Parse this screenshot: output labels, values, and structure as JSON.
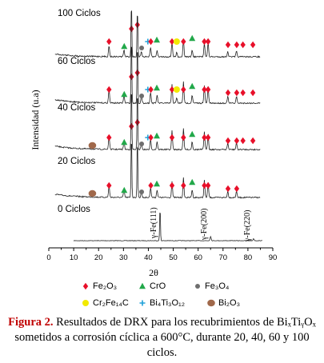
{
  "chart_data": {
    "type": "line",
    "xlabel": "2θ",
    "ylabel": "Intensidad (u.a)",
    "xlim": [
      0,
      90
    ],
    "xticks": [
      0,
      5,
      10,
      15,
      20,
      25,
      30,
      35,
      40,
      45,
      50,
      55,
      60,
      65,
      70,
      75,
      80,
      85,
      90
    ],
    "grid": false,
    "series": [
      {
        "name": "0 Ciclos",
        "peaks": [
          {
            "x": 44.7,
            "h": 1.0
          },
          {
            "x": 65.0,
            "h": 0.13
          },
          {
            "x": 82.3,
            "h": 0.06
          }
        ],
        "markers": []
      },
      {
        "name": "20 Ciclos",
        "peaks": [
          {
            "x": 24.2,
            "h": 0.18
          },
          {
            "x": 30.2,
            "h": 0.12
          },
          {
            "x": 33.2,
            "h": 1.0
          },
          {
            "x": 35.6,
            "h": 0.93
          },
          {
            "x": 37.2,
            "h": 0.1
          },
          {
            "x": 40.9,
            "h": 0.16
          },
          {
            "x": 43.5,
            "h": 0.12
          },
          {
            "x": 49.5,
            "h": 0.25
          },
          {
            "x": 54.1,
            "h": 0.3
          },
          {
            "x": 57.6,
            "h": 0.12
          },
          {
            "x": 62.5,
            "h": 0.26
          },
          {
            "x": 64.0,
            "h": 0.24
          },
          {
            "x": 71.9,
            "h": 0.1
          },
          {
            "x": 75.4,
            "h": 0.1
          }
        ],
        "markers": [
          {
            "x": 24.2,
            "type": "Fe2O3"
          },
          {
            "x": 17.5,
            "type": "Bi2O3"
          },
          {
            "x": 30.3,
            "type": "CrO"
          },
          {
            "x": 33.2,
            "type": "Fe2O3"
          },
          {
            "x": 35.6,
            "type": "Fe2O3"
          },
          {
            "x": 37.3,
            "type": "Fe3O4"
          },
          {
            "x": 41.0,
            "type": "Fe2O3"
          },
          {
            "x": 43.4,
            "type": "CrO"
          },
          {
            "x": 49.5,
            "type": "Fe2O3"
          },
          {
            "x": 54.1,
            "type": "Fe2O3"
          },
          {
            "x": 57.6,
            "type": "CrO"
          },
          {
            "x": 62.5,
            "type": "Fe2O3"
          },
          {
            "x": 64.0,
            "type": "Fe2O3"
          },
          {
            "x": 72.0,
            "type": "Fe2O3"
          },
          {
            "x": 75.5,
            "type": "Fe2O3"
          }
        ]
      },
      {
        "name": "40 Ciclos",
        "peaks": [
          {
            "x": 24.2,
            "h": 0.2
          },
          {
            "x": 30.2,
            "h": 0.12
          },
          {
            "x": 33.2,
            "h": 1.0
          },
          {
            "x": 35.6,
            "h": 0.92
          },
          {
            "x": 37.2,
            "h": 0.1
          },
          {
            "x": 40.9,
            "h": 0.15
          },
          {
            "x": 43.5,
            "h": 0.12
          },
          {
            "x": 49.5,
            "h": 0.28
          },
          {
            "x": 54.1,
            "h": 0.32
          },
          {
            "x": 57.6,
            "h": 0.12
          },
          {
            "x": 62.5,
            "h": 0.27
          },
          {
            "x": 64.0,
            "h": 0.25
          },
          {
            "x": 71.9,
            "h": 0.1
          },
          {
            "x": 75.4,
            "h": 0.1
          }
        ],
        "markers": [
          {
            "x": 17.5,
            "type": "Bi2O3"
          },
          {
            "x": 24.2,
            "type": "Fe2O3"
          },
          {
            "x": 30.3,
            "type": "CrO"
          },
          {
            "x": 33.2,
            "type": "Fe2O3"
          },
          {
            "x": 35.6,
            "type": "Fe2O3"
          },
          {
            "x": 37.3,
            "type": "Fe3O4"
          },
          {
            "x": 39.8,
            "type": "Bi4Ti3O12"
          },
          {
            "x": 41.0,
            "type": "Fe2O3"
          },
          {
            "x": 43.4,
            "type": "CrO"
          },
          {
            "x": 49.5,
            "type": "Fe2O3"
          },
          {
            "x": 54.1,
            "type": "Fe2O3"
          },
          {
            "x": 57.6,
            "type": "CrO"
          },
          {
            "x": 62.5,
            "type": "Fe2O3"
          },
          {
            "x": 64.0,
            "type": "Fe2O3"
          },
          {
            "x": 72.0,
            "type": "Fe2O3"
          },
          {
            "x": 75.5,
            "type": "Fe2O3"
          },
          {
            "x": 78.0,
            "type": "Fe2O3"
          },
          {
            "x": 82.0,
            "type": "Fe2O3"
          }
        ]
      },
      {
        "name": "60 Ciclos",
        "peaks": [
          {
            "x": 24.2,
            "h": 0.2
          },
          {
            "x": 30.2,
            "h": 0.12
          },
          {
            "x": 33.2,
            "h": 1.0
          },
          {
            "x": 35.6,
            "h": 0.9
          },
          {
            "x": 37.2,
            "h": 0.1
          },
          {
            "x": 40.9,
            "h": 0.16
          },
          {
            "x": 43.5,
            "h": 0.12
          },
          {
            "x": 49.5,
            "h": 0.28
          },
          {
            "x": 51.4,
            "h": 0.08
          },
          {
            "x": 54.1,
            "h": 0.32
          },
          {
            "x": 57.6,
            "h": 0.12
          },
          {
            "x": 62.5,
            "h": 0.26
          },
          {
            "x": 64.0,
            "h": 0.25
          },
          {
            "x": 71.9,
            "h": 0.1
          },
          {
            "x": 75.4,
            "h": 0.1
          }
        ],
        "markers": [
          {
            "x": 24.2,
            "type": "Fe2O3"
          },
          {
            "x": 30.3,
            "type": "CrO"
          },
          {
            "x": 33.2,
            "type": "Fe2O3"
          },
          {
            "x": 35.6,
            "type": "Fe2O3"
          },
          {
            "x": 37.3,
            "type": "Fe3O4"
          },
          {
            "x": 39.8,
            "type": "Bi4Ti3O12"
          },
          {
            "x": 41.0,
            "type": "Fe2O3"
          },
          {
            "x": 43.4,
            "type": "CrO"
          },
          {
            "x": 49.5,
            "type": "Fe2O3"
          },
          {
            "x": 51.4,
            "type": "Cr2Fe14C"
          },
          {
            "x": 54.1,
            "type": "Fe2O3"
          },
          {
            "x": 57.6,
            "type": "CrO"
          },
          {
            "x": 62.5,
            "type": "Fe2O3"
          },
          {
            "x": 64.0,
            "type": "Fe2O3"
          },
          {
            "x": 72.0,
            "type": "Fe2O3"
          },
          {
            "x": 75.5,
            "type": "Fe2O3"
          },
          {
            "x": 78.0,
            "type": "Fe2O3"
          },
          {
            "x": 82.0,
            "type": "Fe2O3"
          }
        ]
      },
      {
        "name": "100 Ciclos",
        "peaks": [
          {
            "x": 24.2,
            "h": 0.2
          },
          {
            "x": 30.2,
            "h": 0.12
          },
          {
            "x": 33.2,
            "h": 1.0
          },
          {
            "x": 35.6,
            "h": 0.88
          },
          {
            "x": 37.2,
            "h": 0.1
          },
          {
            "x": 40.9,
            "h": 0.16
          },
          {
            "x": 43.5,
            "h": 0.12
          },
          {
            "x": 49.5,
            "h": 0.28
          },
          {
            "x": 51.4,
            "h": 0.08
          },
          {
            "x": 54.1,
            "h": 0.32
          },
          {
            "x": 57.6,
            "h": 0.12
          },
          {
            "x": 62.5,
            "h": 0.26
          },
          {
            "x": 64.0,
            "h": 0.25
          },
          {
            "x": 71.9,
            "h": 0.1
          },
          {
            "x": 75.4,
            "h": 0.1
          }
        ],
        "markers": [
          {
            "x": 24.2,
            "type": "Fe2O3"
          },
          {
            "x": 30.3,
            "type": "CrO"
          },
          {
            "x": 33.2,
            "type": "Fe2O3"
          },
          {
            "x": 35.6,
            "type": "CrO"
          },
          {
            "x": 37.3,
            "type": "Fe3O4"
          },
          {
            "x": 39.8,
            "type": "Bi4Ti3O12"
          },
          {
            "x": 41.0,
            "type": "Fe2O3"
          },
          {
            "x": 43.4,
            "type": "CrO"
          },
          {
            "x": 49.5,
            "type": "Fe2O3"
          },
          {
            "x": 51.4,
            "type": "Cr2Fe14C"
          },
          {
            "x": 54.1,
            "type": "Fe2O3"
          },
          {
            "x": 57.6,
            "type": "CrO"
          },
          {
            "x": 62.5,
            "type": "Fe2O3"
          },
          {
            "x": 64.0,
            "type": "Fe2O3"
          },
          {
            "x": 72.0,
            "type": "Fe2O3"
          },
          {
            "x": 75.5,
            "type": "Fe2O3"
          },
          {
            "x": 78.0,
            "type": "Fe2O3"
          },
          {
            "x": 82.0,
            "type": "Fe2O3"
          }
        ]
      }
    ],
    "annotations": [
      {
        "x": 44.7,
        "text": "γ-Fe(111)"
      },
      {
        "x": 65.0,
        "text": "γ-Fe(200)"
      },
      {
        "x": 82.3,
        "text": "γ-Fe(220)"
      }
    ],
    "legend": {
      "placement": "bottom",
      "entries": [
        {
          "type": "Fe2O3",
          "label": "Fe₂O₃",
          "shape": "diamond",
          "color": "#e8102a"
        },
        {
          "type": "CrO",
          "label": "CrO",
          "shape": "triangle",
          "color": "#22a84a"
        },
        {
          "type": "Fe3O4",
          "label": "Fe₃O₄",
          "shape": "circle",
          "color": "#6e6e6e"
        },
        {
          "type": "Cr2Fe14C",
          "label": "Cr₂Fe₁₄C",
          "shape": "circle",
          "color": "#f2ea00"
        },
        {
          "type": "Bi4Ti3O12",
          "label": "Bi₄Ti₃O₁₂",
          "shape": "plus",
          "color": "#1ea0d8"
        },
        {
          "type": "Bi2O3",
          "label": "Bi₂O₃",
          "shape": "circle",
          "color": "#a0684a"
        }
      ]
    }
  },
  "caption": {
    "figure_label": "Figura 2.",
    "text": "Resultados de DRX para los recubrimientos de BiₓTiᵧOₓ sometidos a corrosión cíclica a 600°C, durante 20, 40, 60 y 100 ciclos."
  }
}
